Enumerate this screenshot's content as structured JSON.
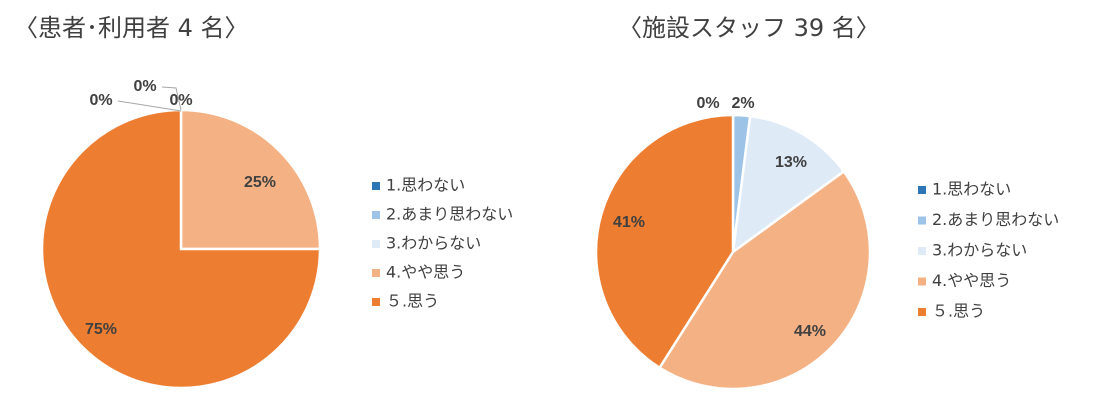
{
  "chart_data": [
    {
      "type": "pie",
      "title": "〈患者･利用者 4 名〉",
      "categories": [
        "1.思わない",
        "2.あまり思わない",
        "3.わからない",
        "4.やや思う",
        "５.思う"
      ],
      "values": [
        0,
        0,
        0,
        25,
        75
      ],
      "labels": [
        "0%",
        "0%",
        "0%",
        "25%",
        "75%"
      ],
      "colors": [
        "#2e75b6",
        "#9dc3e6",
        "#deebf7",
        "#f4b183",
        "#ed7d31"
      ],
      "legend": "right"
    },
    {
      "type": "pie",
      "title": "〈施設スタッフ 39 名〉",
      "categories": [
        "1.思わない",
        "2.あまり思わない",
        "3.わからない",
        "4.やや思う",
        "５.思う"
      ],
      "values": [
        0,
        2,
        13,
        44,
        41
      ],
      "labels": [
        "0%",
        "2%",
        "13%",
        "44%",
        "41%"
      ],
      "colors": [
        "#2e75b6",
        "#9dc3e6",
        "#deebf7",
        "#f4b183",
        "#ed7d31"
      ],
      "legend": "right"
    }
  ]
}
